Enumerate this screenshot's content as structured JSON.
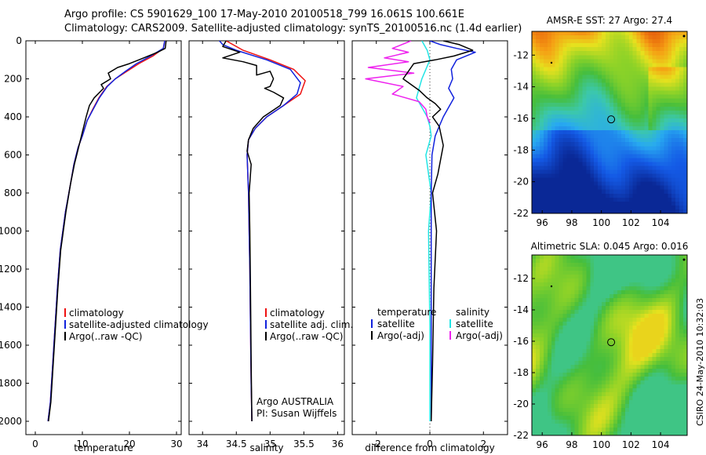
{
  "header": {
    "line1": "Argo profile: CS 5901629_100 17-May-2010 20100518_799 16.061S 100.661E",
    "line2": "Climatology: CARS2009. Satellite-adjusted climatology: synTS_20100516.nc (1.4d earlier)"
  },
  "credit": "CSIRO 24-May-2010 10:32:03",
  "colors": {
    "red": "#ee1111",
    "blue": "#1122dd",
    "black": "#000000",
    "cyan": "#22e5e5",
    "magenta": "#ee22ee"
  },
  "chart_data": [
    {
      "type": "line",
      "id": "temperature",
      "xlabel": "temperature",
      "ylabel": "",
      "xlim": [
        -2,
        31
      ],
      "ylim": [
        0,
        2070
      ],
      "y_reversed": true,
      "xticks": [
        0,
        10,
        20,
        30
      ],
      "yticks": [
        0,
        200,
        400,
        600,
        800,
        1000,
        1200,
        1400,
        1600,
        1800,
        2000
      ],
      "legend": [
        "climatology",
        "satellite-adjusted climatology",
        "Argo(..raw -QC)"
      ],
      "series": [
        {
          "name": "climatology",
          "color": "red",
          "x": [
            27.5,
            27.2,
            25,
            22,
            19.5,
            17,
            15.2,
            13.5,
            12.2,
            11,
            10,
            9.1,
            8.2,
            7.5,
            6.4,
            5.3,
            4.7,
            4.2,
            3.7,
            3.2,
            2.7
          ],
          "y": [
            0,
            40,
            80,
            120,
            160,
            200,
            240,
            300,
            360,
            420,
            500,
            560,
            650,
            750,
            900,
            1100,
            1300,
            1500,
            1700,
            1900,
            2000
          ]
        },
        {
          "name": "satellite-adjusted climatology",
          "color": "blue",
          "x": [
            27.5,
            27.2,
            24.5,
            21.5,
            19.2,
            17,
            15.3,
            13.6,
            12.3,
            11,
            10,
            9.1,
            8.2,
            7.5,
            6.4,
            5.3,
            4.7,
            4.2,
            3.7,
            3.2,
            2.7
          ],
          "y": [
            0,
            40,
            80,
            120,
            160,
            200,
            240,
            300,
            360,
            420,
            500,
            560,
            650,
            750,
            900,
            1100,
            1300,
            1500,
            1700,
            1900,
            2000
          ]
        },
        {
          "name": "Argo(..raw -QC)",
          "color": "black",
          "x": [
            27.8,
            27.6,
            26,
            24,
            22,
            20,
            17.5,
            15.5,
            16,
            14,
            14.5,
            12.5,
            11.5,
            10.8,
            10,
            9.2,
            8.3,
            7.5,
            6.5,
            5.4,
            4.8,
            4.3,
            3.8,
            3.3,
            2.8
          ],
          "y": [
            0,
            40,
            60,
            80,
            100,
            120,
            140,
            170,
            200,
            230,
            250,
            300,
            340,
            400,
            480,
            560,
            650,
            750,
            900,
            1100,
            1300,
            1500,
            1700,
            1900,
            2000
          ]
        }
      ]
    },
    {
      "type": "line",
      "id": "salinity",
      "xlabel": "salinity",
      "ylabel": "",
      "xlim": [
        33.8,
        36.1
      ],
      "ylim": [
        0,
        2070
      ],
      "y_reversed": true,
      "xticks": [
        34,
        34.5,
        35,
        35.5,
        36
      ],
      "legend": [
        "climatology",
        "satellite adj. clim.",
        "Argo(..raw -QC)"
      ],
      "annotation": [
        "Argo AUSTRALIA",
        "PI: Susan Wijffels"
      ],
      "series": [
        {
          "name": "climatology",
          "color": "red",
          "x": [
            34.35,
            34.6,
            35.0,
            35.35,
            35.52,
            35.45,
            35.2,
            34.95,
            34.78,
            34.68,
            34.66,
            34.67,
            34.68,
            34.69,
            34.7,
            34.71,
            34.72,
            34.73
          ],
          "y": [
            0,
            50,
            100,
            150,
            210,
            280,
            340,
            400,
            460,
            520,
            600,
            700,
            800,
            1000,
            1200,
            1500,
            1800,
            2000
          ]
        },
        {
          "name": "satellite adj. clim.",
          "color": "blue",
          "x": [
            34.25,
            34.3,
            34.5,
            34.95,
            35.3,
            35.45,
            35.4,
            35.2,
            34.95,
            34.78,
            34.68,
            34.66,
            34.67,
            34.68,
            34.69,
            34.7,
            34.71,
            34.72,
            34.73
          ],
          "y": [
            0,
            20,
            50,
            100,
            150,
            220,
            280,
            340,
            400,
            460,
            520,
            600,
            700,
            800,
            1000,
            1200,
            1500,
            1800,
            2000
          ]
        },
        {
          "name": "Argo(..raw -QC)",
          "color": "black",
          "x": [
            34.35,
            34.3,
            34.55,
            34.3,
            34.6,
            34.8,
            34.8,
            35.0,
            35.05,
            35.0,
            34.92,
            35.05,
            35.2,
            35.15,
            34.9,
            34.75,
            34.68,
            34.66,
            34.72,
            34.69,
            34.7,
            34.71,
            34.72,
            34.73
          ],
          "y": [
            0,
            30,
            60,
            90,
            110,
            130,
            180,
            160,
            200,
            240,
            250,
            270,
            300,
            340,
            400,
            460,
            520,
            580,
            650,
            800,
            1000,
            1300,
            1700,
            2000
          ]
        }
      ]
    },
    {
      "type": "line",
      "id": "difference",
      "xlabel": "difference from climatology",
      "ylabel": "",
      "xlim": [
        -2.9,
        2.9
      ],
      "ylim": [
        0,
        2070
      ],
      "y_reversed": true,
      "xticks": [
        -2,
        0,
        2
      ],
      "legend_left_title": "temperature",
      "legend_right_title": "salinity",
      "legend": [
        "satellite",
        "Argo(-adj)",
        "satellite",
        "Argo(-adj)"
      ],
      "series": [
        {
          "name": "temperature satellite",
          "color": "blue",
          "x": [
            0,
            0.4,
            1.0,
            1.7,
            1.0,
            0.8,
            0.85,
            0.7,
            0.9,
            0.7,
            0.5,
            0.35,
            0.2,
            0.08,
            0.05,
            0.05,
            0.05
          ],
          "y": [
            0,
            20,
            40,
            60,
            100,
            150,
            200,
            250,
            300,
            350,
            400,
            450,
            500,
            600,
            800,
            1200,
            2000
          ]
        },
        {
          "name": "temperature Argo(-adj)",
          "color": "black",
          "x": [
            0.5,
            1.1,
            1.6,
            0.9,
            0.2,
            -0.6,
            -1.0,
            -0.4,
            -0.1,
            0.2,
            0.4,
            0.1,
            0.35,
            0.5,
            0.3,
            0.1,
            0.25,
            0.15,
            0.1,
            0.05
          ],
          "y": [
            0,
            20,
            50,
            80,
            100,
            120,
            200,
            260,
            300,
            330,
            360,
            400,
            450,
            550,
            700,
            800,
            1000,
            1300,
            1700,
            2000
          ]
        },
        {
          "name": "salinity satellite",
          "color": "cyan",
          "x": [
            -0.3,
            -0.1,
            0.0,
            -0.15,
            -0.3,
            -0.4,
            -0.5,
            -0.3,
            -0.1,
            0.0,
            0.05,
            -0.15,
            0.05,
            -0.05,
            0.0,
            0.0
          ],
          "y": [
            0,
            50,
            100,
            150,
            200,
            250,
            300,
            350,
            400,
            450,
            500,
            600,
            800,
            1000,
            1500,
            2000
          ]
        },
        {
          "name": "salinity Argo(-adj)",
          "color": "magenta",
          "x": [
            -0.7,
            -1.4,
            -0.8,
            -1.7,
            -0.8,
            -2.3,
            -0.6,
            -2.4,
            -1.0,
            -1.4,
            -0.4,
            -0.15,
            -0.1,
            0.0
          ],
          "y": [
            0,
            40,
            60,
            90,
            110,
            140,
            170,
            200,
            240,
            280,
            320,
            360,
            400,
            430
          ]
        }
      ]
    }
  ],
  "maps": [
    {
      "id": "sst",
      "title": "AMSR-E SST: 27 Argo: 27.4",
      "xticks": [
        "96",
        "98",
        "100",
        "102",
        "104"
      ],
      "yticks": [
        "-12",
        "-14",
        "-16",
        "-18",
        "-20",
        "-22"
      ],
      "xlim": [
        95.3,
        105.8
      ],
      "ylim": [
        -22,
        -10.5
      ],
      "marker": [
        100.66,
        -16.06
      ]
    },
    {
      "id": "sla",
      "title": "Altimetric SLA: 0.045 Argo: 0.016",
      "xticks": [
        "96",
        "98",
        "100",
        "102",
        "104"
      ],
      "yticks": [
        "-12",
        "-14",
        "-16",
        "-18",
        "-20",
        "-22"
      ],
      "xlim": [
        95.3,
        105.8
      ],
      "ylim": [
        -22,
        -10.5
      ],
      "marker": [
        100.66,
        -16.06
      ]
    }
  ]
}
